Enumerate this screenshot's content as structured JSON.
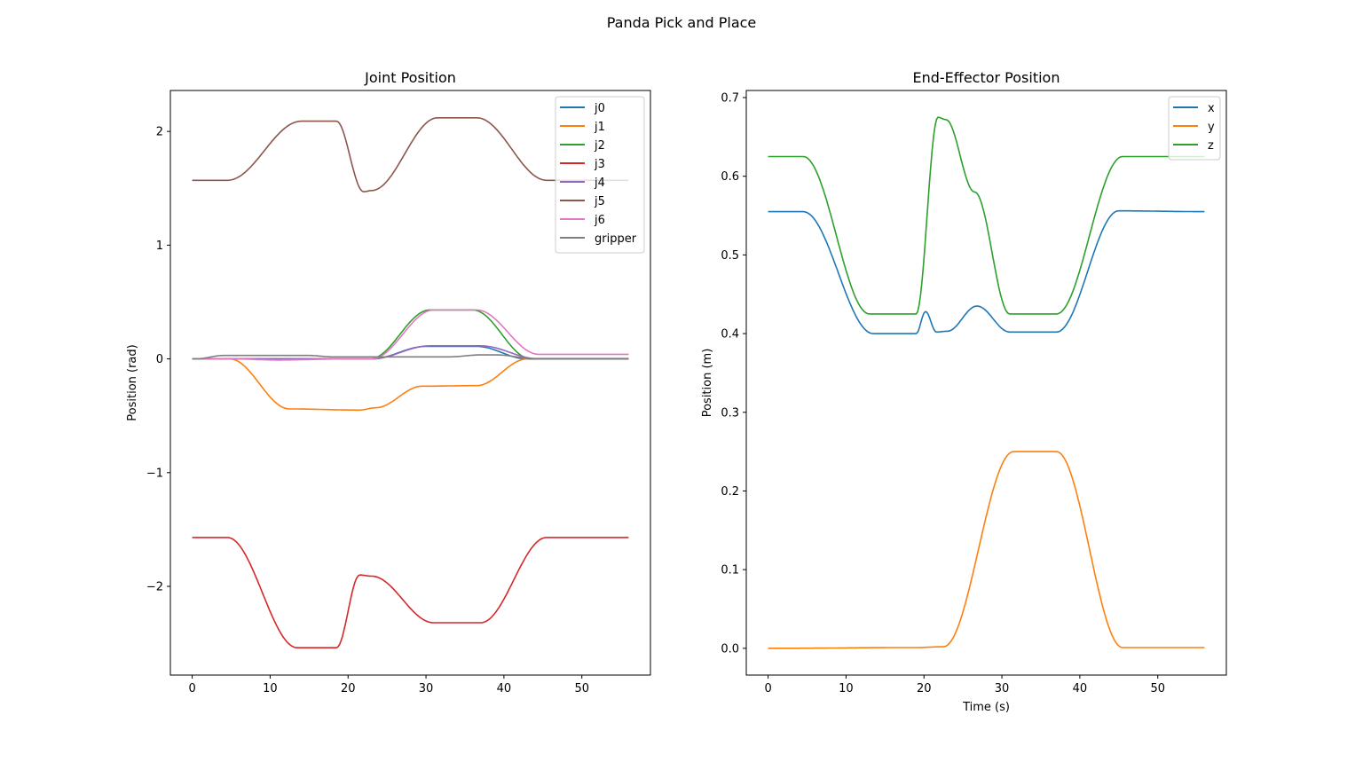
{
  "figure_title": "Panda Pick and Place",
  "chart_data": [
    {
      "type": "line",
      "title": "Joint Position",
      "xlabel": "",
      "ylabel": "Position (rad)",
      "xlim": [
        -2.8,
        58.8
      ],
      "ylim": [
        -2.78,
        2.36
      ],
      "xticks": [
        0,
        10,
        20,
        30,
        40,
        50
      ],
      "yticks": [
        -2,
        -1,
        0,
        1,
        2
      ],
      "ytick_labels": [
        "−2",
        "−1",
        "0",
        "1",
        "2"
      ],
      "grid": false,
      "legend": "top-right",
      "series": [
        {
          "name": "j0",
          "color": "#1f77b4",
          "x": [
            0,
            23,
            30,
            36.5,
            43,
            56
          ],
          "y": [
            0,
            0,
            0.11,
            0.11,
            0,
            0
          ]
        },
        {
          "name": "j1",
          "color": "#ff7f0e",
          "x": [
            0,
            4.8,
            12.5,
            21.5,
            23.5,
            29.5,
            36.5,
            43,
            56
          ],
          "y": [
            0,
            0,
            -0.44,
            -0.45,
            -0.43,
            -0.24,
            -0.235,
            0,
            0
          ]
        },
        {
          "name": "j2",
          "color": "#2ca02c",
          "x": [
            0,
            22.8,
            30.5,
            36,
            43.5,
            56
          ],
          "y": [
            0,
            0,
            0.43,
            0.43,
            0,
            0
          ]
        },
        {
          "name": "j3",
          "color": "#d62728",
          "x": [
            0,
            4.5,
            13.5,
            18.5,
            21.5,
            23,
            31,
            37,
            45.5,
            56
          ],
          "y": [
            -1.57,
            -1.57,
            -2.54,
            -2.54,
            -1.9,
            -1.91,
            -2.32,
            -2.32,
            -1.57,
            -1.57
          ]
        },
        {
          "name": "j4",
          "color": "#9467bd",
          "x": [
            0,
            23,
            30.5,
            37,
            44.5,
            56
          ],
          "y": [
            0,
            0,
            0.115,
            0.115,
            0,
            0
          ]
        },
        {
          "name": "j5",
          "color": "#8c564b",
          "x": [
            0,
            4.5,
            14,
            18.5,
            22,
            23,
            31.5,
            36.5,
            45.5,
            56
          ],
          "y": [
            1.57,
            1.57,
            2.09,
            2.09,
            1.47,
            1.48,
            2.12,
            2.12,
            1.57,
            1.57
          ]
        },
        {
          "name": "j6",
          "color": "#e377c2",
          "x": [
            0,
            5,
            11,
            20,
            23,
            31,
            36.5,
            44.5,
            56
          ],
          "y": [
            0,
            0,
            -0.01,
            0,
            0,
            0.43,
            0.43,
            0.04,
            0.04
          ]
        },
        {
          "name": "gripper",
          "color": "#7f7f7f",
          "x": [
            0,
            0.5,
            4,
            15,
            18,
            33,
            37,
            39,
            44,
            56
          ],
          "y": [
            0,
            0,
            0.03,
            0.03,
            0.018,
            0.018,
            0.035,
            0.035,
            0.003,
            0.003
          ]
        }
      ]
    },
    {
      "type": "line",
      "title": "End-Effector Position",
      "xlabel": "Time (s)",
      "ylabel": "Position (m)",
      "xlim": [
        -2.8,
        58.8
      ],
      "ylim": [
        -0.034,
        0.709
      ],
      "xticks": [
        0,
        10,
        20,
        30,
        40,
        50
      ],
      "yticks": [
        0,
        0.1,
        0.2,
        0.3,
        0.4,
        0.5,
        0.6,
        0.7
      ],
      "ytick_labels": [
        "0.0",
        "0.1",
        "0.2",
        "0.3",
        "0.4",
        "0.5",
        "0.6",
        "0.7"
      ],
      "grid": false,
      "legend": "top-right",
      "series": [
        {
          "name": "x",
          "color": "#1f77b4",
          "x": [
            0,
            4.5,
            13.5,
            19,
            20.2,
            21.6,
            23,
            26.8,
            31,
            37,
            45,
            56
          ],
          "y": [
            0.555,
            0.555,
            0.4,
            0.4,
            0.428,
            0.402,
            0.403,
            0.435,
            0.402,
            0.402,
            0.556,
            0.555
          ]
        },
        {
          "name": "y",
          "color": "#ff7f0e",
          "x": [
            0,
            19,
            22.5,
            31.5,
            37,
            45.5,
            56
          ],
          "y": [
            0,
            0.001,
            0.002,
            0.25,
            0.25,
            0.001,
            0.001
          ]
        },
        {
          "name": "z",
          "color": "#2ca02c",
          "x": [
            0,
            4.5,
            13,
            19,
            21.8,
            22.8,
            26.5,
            31,
            37,
            45.5,
            56
          ],
          "y": [
            0.625,
            0.625,
            0.425,
            0.425,
            0.675,
            0.672,
            0.58,
            0.425,
            0.425,
            0.625,
            0.625
          ]
        }
      ]
    }
  ]
}
